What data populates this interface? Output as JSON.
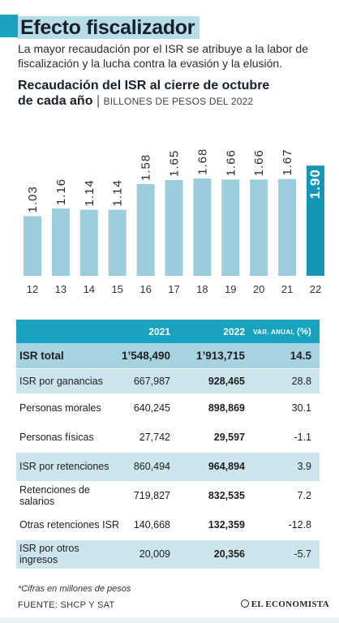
{
  "header": {
    "title": "Efecto fiscalizador",
    "subtitle": "La mayor recaudación por el ISR se atribuye a la labor de fiscalización y la lucha contra la evasión y la elusión."
  },
  "chart_data": {
    "type": "bar",
    "title_line1": "Recaudación del ISR al cierre de octubre",
    "title_line2": "de cada año",
    "unit": "BILLONES DE PESOS DEL 2022",
    "categories": [
      "12",
      "13",
      "14",
      "15",
      "16",
      "17",
      "18",
      "19",
      "20",
      "21",
      "22"
    ],
    "values": [
      1.03,
      1.16,
      1.14,
      1.14,
      1.58,
      1.65,
      1.68,
      1.66,
      1.66,
      1.67,
      1.9
    ],
    "value_labels": [
      "1.03",
      "1.16",
      "1.14",
      "1.14",
      "1.58",
      "1.65",
      "1.68",
      "1.66",
      "1.66",
      "1.67",
      "1.90"
    ],
    "highlight_index": 10,
    "colors": {
      "bar": "#9ccddc",
      "highlight": "#1496b4",
      "label": "#2b2b2b",
      "highlight_label": "#ffffff"
    }
  },
  "table": {
    "headers": [
      "",
      "2021",
      "2022",
      "VAR. ANUAL",
      "(%)"
    ],
    "rows": [
      {
        "label": "ISR total",
        "v2021": "1’548,490",
        "v2022": "1’913,715",
        "var": "14.5",
        "style": "total"
      },
      {
        "label": "ISR por ganancias",
        "v2021": "667,987",
        "v2022": "928,465",
        "var": "28.8",
        "style": "shaded"
      },
      {
        "label": "Personas morales",
        "v2021": "640,245",
        "v2022": "898,869",
        "var": "30.1",
        "style": "plain"
      },
      {
        "label": "Personas físicas",
        "v2021": "27,742",
        "v2022": "29,597",
        "var": "-1.1",
        "style": "plain"
      },
      {
        "label": "ISR por retenciones",
        "v2021": "860,494",
        "v2022": "964,894",
        "var": "3.9",
        "style": "shaded"
      },
      {
        "label": "Retenciones de salarios",
        "v2021": "719,827",
        "v2022": "832,535",
        "var": "7.2",
        "style": "plain"
      },
      {
        "label": "Otras retenciones ISR",
        "v2021": "140,668",
        "v2022": "132,359",
        "var": "-12.8",
        "style": "plain"
      },
      {
        "label": "ISR por otros ingresos",
        "v2021": "20,009",
        "v2022": "20,356",
        "var": "-5.7",
        "style": "shaded"
      }
    ]
  },
  "footer": {
    "note": "*Cifras en millones de pesos",
    "source": "FUENTE: SHCP Y SAT",
    "logo": "EL ECONOMISTA"
  }
}
